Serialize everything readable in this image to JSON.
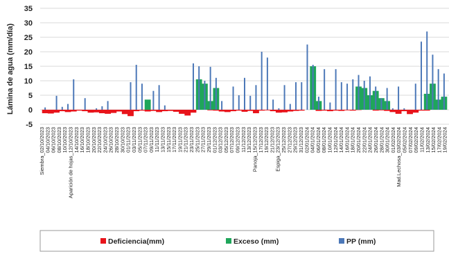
{
  "chart_data": {
    "type": "bar",
    "title": "",
    "ylabel": "Lámina de agua (mm/día)",
    "xlabel": "",
    "ylim": [
      -5,
      35
    ],
    "yticks": [
      -5,
      0,
      5,
      10,
      15,
      20,
      25,
      30,
      35
    ],
    "grid": "horizontal",
    "legend_position": "bottom",
    "x_tick_labels": [
      "Siembra_02/10/2023",
      "04/10/2023",
      "06/10/2023",
      "08/10/2023",
      "10/10/2023",
      "Aparición de hojas_12/10/2023",
      "14/10/2023",
      "16/10/2023",
      "18/10/2023",
      "20/10/2023",
      "22/10/2023",
      "24/10/2023",
      "26/10/2023",
      "28/10/2023",
      "30/10/2023",
      "01/11/2023",
      "03/11/2023",
      "05/11/2023",
      "07/11/2023",
      "09/11/2023",
      "11/11/2023",
      "13/11/2023",
      "15/11/2023",
      "17/11/2023",
      "19/11/2023",
      "21/11/2023",
      "23/11/2023",
      "25/11/2023",
      "27/11/2023",
      "29/11/2023",
      "01/12/2023",
      "03/12/2023",
      "05/12/2023",
      "07/12/2023",
      "09/12/2023",
      "11/12/2023",
      "13/12/2023",
      "Panoja_15/12/2023",
      "17/12/2023",
      "19/12/2023",
      "21/12/2023",
      "Espiga_23/12/2023",
      "25/12/2023",
      "27/12/2023",
      "29/12/2023",
      "31/12/2023",
      "02/01/2024",
      "04/01/2024",
      "06/01/2024",
      "08/01/2024",
      "10/01/2024",
      "12/01/2024",
      "14/01/2024",
      "16/01/2024",
      "18/01/2024",
      "20/01/2024",
      "22/01/2024",
      "24/01/2024",
      "26/01/2024",
      "28/01/2024",
      "30/01/2024",
      "01/02/2024",
      "Mad.Lechosa_03/02/2024",
      "05/02/2024",
      "07/02/2024",
      "09/02/2024",
      "11/02/2024",
      "13/02/2024",
      "15/02/2024",
      "17/02/2024",
      "19/02/2024"
    ],
    "series": [
      {
        "name": "Deficiencia(mm)",
        "color": "#e8141b",
        "type": "area",
        "values": [
          -1.2,
          -1.3,
          -1.0,
          -0.5,
          -0.8,
          -0.6,
          -0.3,
          -0.5,
          -1.0,
          -0.9,
          -1.2,
          -1.4,
          -1.1,
          -0.6,
          -1.5,
          -2.2,
          -0.5,
          -0.3,
          -0.6,
          -0.4,
          -0.8,
          -0.5,
          -0.4,
          -0.7,
          -1.4,
          -2.0,
          -1.0,
          0,
          0,
          -0.2,
          -0.3,
          -0.6,
          -0.8,
          -0.5,
          -0.3,
          -0.7,
          -0.4,
          -1.2,
          -0.3,
          -0.2,
          -0.5,
          -1.0,
          -0.9,
          -0.6,
          -0.4,
          -0.3,
          0,
          0,
          -0.4,
          -0.3,
          -0.5,
          -0.3,
          -0.4,
          -0.2,
          -0.3,
          -0.1,
          0,
          0,
          -0.3,
          -0.2,
          -0.4,
          -0.8,
          -1.4,
          -0.5,
          -1.5,
          -1.0,
          -0.3,
          -0.3,
          0,
          0,
          0
        ]
      },
      {
        "name": "Exceso (mm)",
        "color": "#1fa65a",
        "type": "area",
        "values": [
          0,
          0,
          0,
          0,
          0,
          0,
          0,
          0,
          0,
          0,
          0,
          0,
          0,
          0,
          0,
          0,
          0,
          0,
          3.5,
          0,
          0,
          0,
          0,
          0,
          0,
          0,
          0,
          10.5,
          9.0,
          3.0,
          7.5,
          0,
          0,
          0,
          0,
          0,
          0,
          0,
          0,
          0,
          0,
          0,
          0,
          0,
          0,
          0,
          0,
          15.0,
          3.0,
          0,
          0,
          0,
          0,
          0,
          0,
          8.0,
          7.5,
          5.0,
          6.5,
          4.0,
          3.0,
          0,
          0,
          0,
          0,
          0,
          0,
          5.5,
          9.0,
          3.5,
          4.5
        ]
      },
      {
        "name": "PP (mm)",
        "color": "#4c78b8",
        "type": "bar",
        "values": [
          0.8,
          0,
          4.8,
          1.0,
          2.0,
          10.5,
          0,
          4.0,
          0,
          0.5,
          1.2,
          3.0,
          0,
          0,
          0,
          9.5,
          15.5,
          9.0,
          0,
          6.5,
          8.5,
          1.5,
          0,
          0,
          0,
          0,
          16.0,
          15.0,
          10.0,
          14.8,
          11.0,
          3.0,
          0,
          8.0,
          5.0,
          11.0,
          4.8,
          8.5,
          20.0,
          18.0,
          3.5,
          0.5,
          8.5,
          2.0,
          9.5,
          9.5,
          22.5,
          15.5,
          4.5,
          14.0,
          2.5,
          14.0,
          9.5,
          9.0,
          10.5,
          12.0,
          10.0,
          11.5,
          8.0,
          4.0,
          7.5,
          0.5,
          8.0,
          0.5,
          0,
          9.0,
          23.5,
          27.0,
          19.0,
          14.0,
          12.5
        ]
      }
    ],
    "legend": {
      "items": [
        {
          "label": "Deficiencia(mm)",
          "color": "#e8141b"
        },
        {
          "label": "Exceso (mm)",
          "color": "#1fa65a"
        },
        {
          "label": "PP (mm)",
          "color": "#4c78b8"
        }
      ]
    }
  }
}
